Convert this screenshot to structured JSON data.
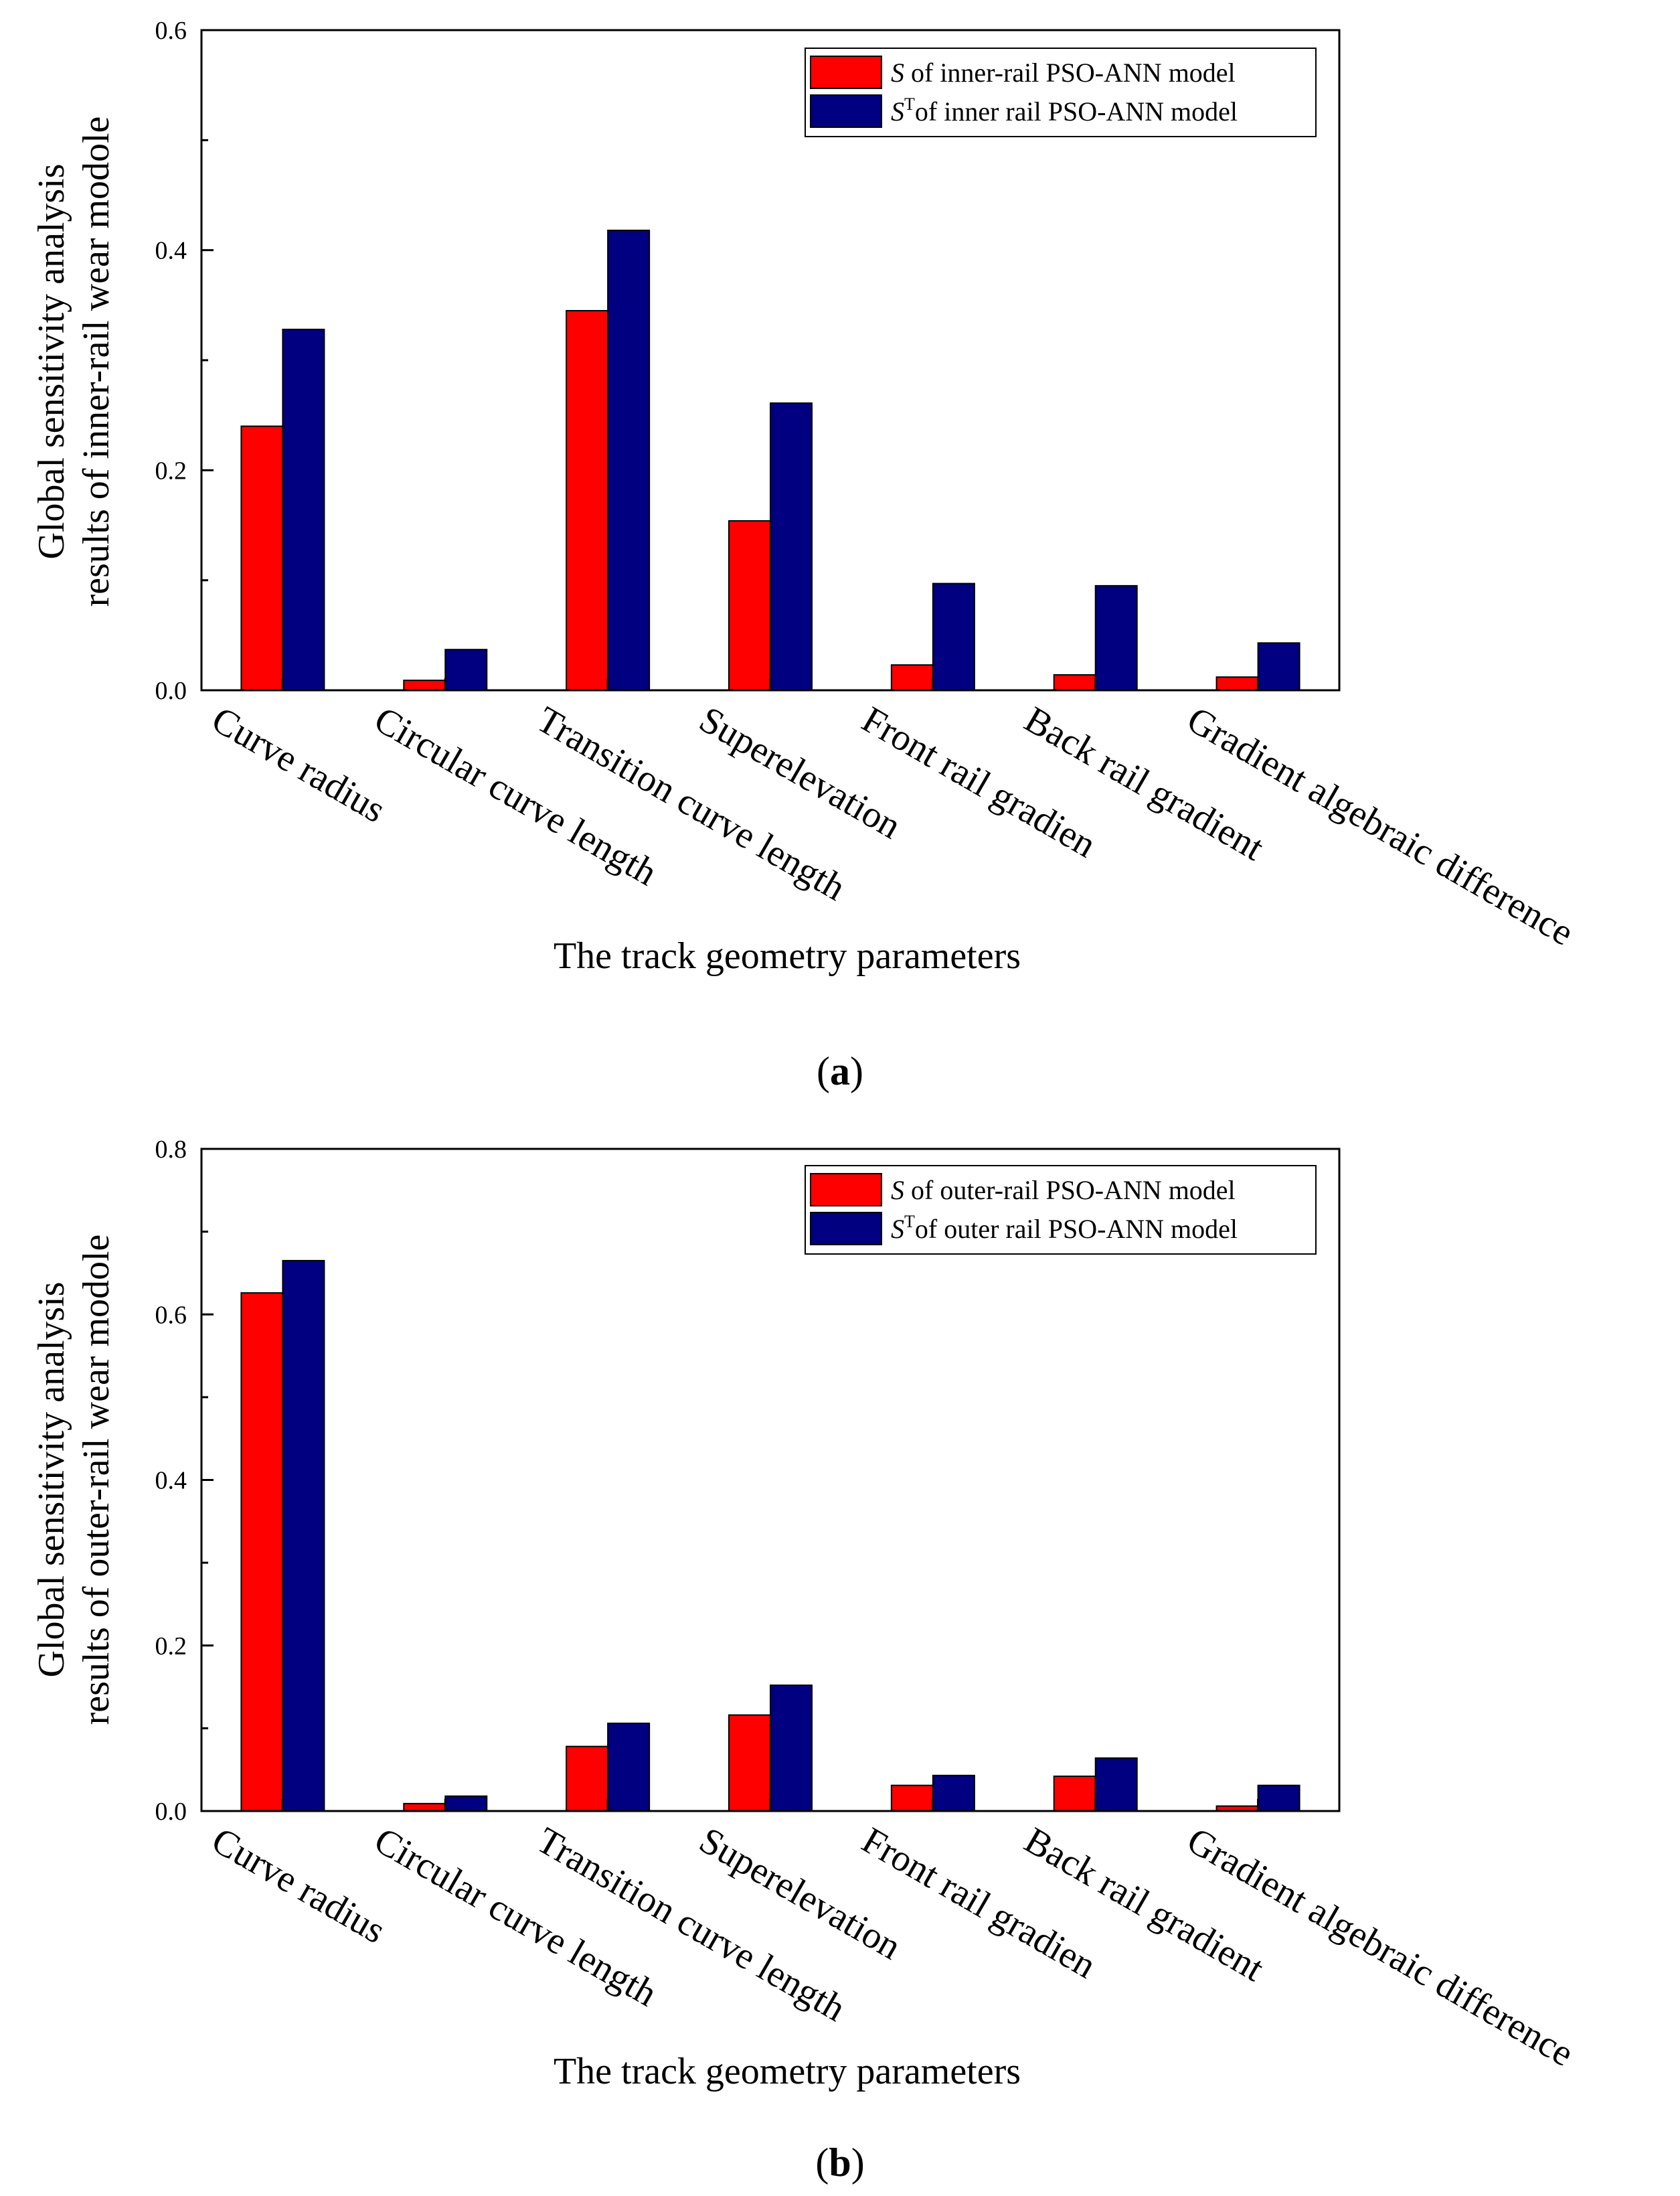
{
  "xlabel": "The track geometry parameters",
  "colors": {
    "s": "#ff0000",
    "st": "#000080",
    "axis": "#000000"
  },
  "chart_data": [
    {
      "type": "bar",
      "panel": "a",
      "caption_letter": "a",
      "categories": [
        "Curve radius",
        "Circular curve length",
        "Transition curve length",
        "Superelevation",
        "Front rail gradien",
        "Back rail gradient",
        "Gradient algebraic difference"
      ],
      "series": [
        {
          "name": "S of inner-rail PSO-ANN model",
          "symbol": "S",
          "sup": "",
          "rest": " of inner-rail PSO-ANN model",
          "values": [
            0.24,
            0.009,
            0.345,
            0.154,
            0.023,
            0.014,
            0.012
          ]
        },
        {
          "name": "ST of inner rail PSO-ANN model",
          "symbol": "S",
          "sup": "T",
          "rest": "of inner rail PSO-ANN model",
          "values": [
            0.328,
            0.037,
            0.418,
            0.261,
            0.097,
            0.095,
            0.043
          ]
        }
      ],
      "ylabel_line1": "Global sensitivity analysis",
      "ylabel_line2": "results of inner-rail wear modole",
      "xlabel": "The track geometry parameters",
      "ylim": [
        0,
        0.6
      ],
      "yticks": [
        "0.0",
        "0.2",
        "0.4",
        "0.6"
      ],
      "legend_position": "top-right"
    },
    {
      "type": "bar",
      "panel": "b",
      "caption_letter": "b",
      "categories": [
        "Curve radius",
        "Circular curve length",
        "Transition curve length",
        "Superelevation",
        "Front rail gradien",
        "Back rail gradient",
        "Gradient algebraic difference"
      ],
      "series": [
        {
          "name": "S of outer-rail PSO-ANN model",
          "symbol": "S",
          "sup": "",
          "rest": " of outer-rail PSO-ANN model",
          "values": [
            0.626,
            0.009,
            0.078,
            0.116,
            0.031,
            0.042,
            0.006
          ]
        },
        {
          "name": "ST of outer rail PSO-ANN model",
          "symbol": "S",
          "sup": "T",
          "rest": "of outer rail PSO-ANN model",
          "values": [
            0.665,
            0.018,
            0.106,
            0.152,
            0.043,
            0.064,
            0.031
          ]
        }
      ],
      "ylabel_line1": "Global sensitivity analysis",
      "ylabel_line2": "results of outer-rail wear modole",
      "xlabel": "The track geometry parameters",
      "ylim": [
        0,
        0.8
      ],
      "yticks": [
        "0.0",
        "0.2",
        "0.4",
        "0.6",
        "0.8"
      ],
      "legend_position": "top-right"
    }
  ]
}
